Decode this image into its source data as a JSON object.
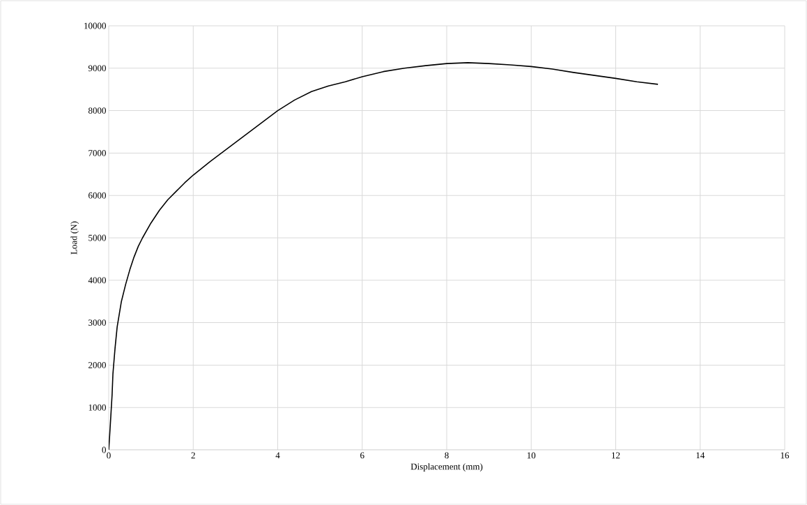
{
  "chart_data": {
    "type": "line",
    "xlabel": "Displacement (mm)",
    "ylabel": "Load (N)",
    "series": [
      {
        "color": "#000000",
        "x": [
          0,
          0.02,
          0.05,
          0.08,
          0.1,
          0.15,
          0.2,
          0.25,
          0.3,
          0.4,
          0.5,
          0.6,
          0.7,
          0.8,
          1,
          1.2,
          1.4,
          1.6,
          1.8,
          2,
          2.4,
          2.8,
          3.2,
          3.6,
          4,
          4.4,
          4.8,
          5.2,
          5.6,
          6,
          6.5,
          7,
          7.5,
          8,
          8.5,
          9,
          9.5,
          10,
          10.5,
          11,
          11.5,
          12,
          12.5,
          13
        ],
        "values": [
          0,
          300,
          800,
          1300,
          1800,
          2400,
          2900,
          3200,
          3500,
          3900,
          4250,
          4550,
          4800,
          5000,
          5350,
          5650,
          5900,
          6100,
          6300,
          6480,
          6800,
          7100,
          7400,
          7700,
          8000,
          8250,
          8450,
          8580,
          8680,
          8800,
          8920,
          9000,
          9060,
          9110,
          9130,
          9110,
          9080,
          9040,
          8980,
          8900,
          8830,
          8760,
          8680,
          8620
        ]
      }
    ],
    "xlim": [
      0,
      16
    ],
    "xticks": [
      0,
      2,
      4,
      6,
      8,
      10,
      12,
      14,
      16
    ],
    "ylim": [
      0,
      10000
    ],
    "yticks": [
      0,
      1000,
      2000,
      3000,
      4000,
      5000,
      6000,
      7000,
      8000,
      9000,
      10000
    ],
    "grid": true,
    "legend": false,
    "marker": "none",
    "line_style": "solid"
  }
}
